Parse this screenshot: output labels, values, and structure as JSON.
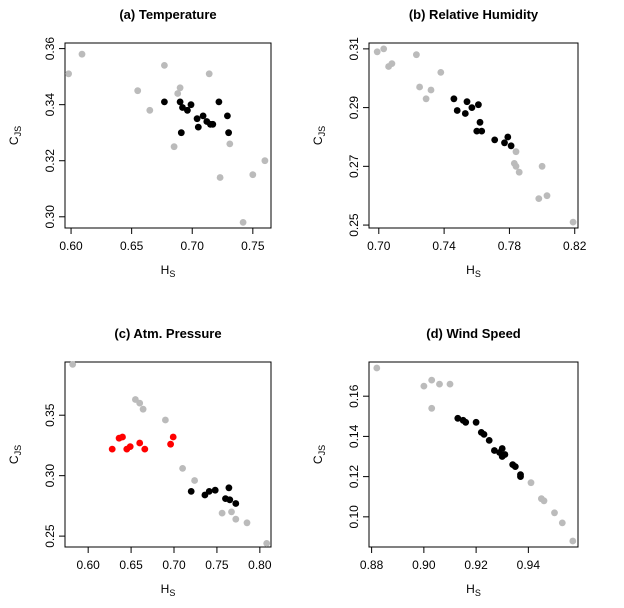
{
  "figure": {
    "type": "scatter-panel-grid"
  },
  "chart_data": [
    {
      "type": "scatter",
      "title": "(a) Temperature",
      "xlabel": "H",
      "xlabel_sub": "S",
      "ylabel": "C",
      "ylabel_sub": "JS",
      "xlim": [
        0.595,
        0.765
      ],
      "ylim": [
        0.296,
        0.362
      ],
      "xticks": [
        0.6,
        0.65,
        0.7,
        0.75
      ],
      "xtick_labels": [
        "0.60",
        "0.65",
        "0.70",
        "0.75"
      ],
      "yticks": [
        0.3,
        0.32,
        0.34,
        0.36
      ],
      "ytick_labels": [
        "0.30",
        "0.32",
        "0.34",
        "0.36"
      ],
      "series": [
        {
          "color": "#bbbbbb",
          "points": [
            [
              0.598,
              0.351
            ],
            [
              0.609,
              0.358
            ],
            [
              0.655,
              0.345
            ],
            [
              0.665,
              0.338
            ],
            [
              0.677,
              0.354
            ],
            [
              0.688,
              0.344
            ],
            [
              0.69,
              0.346
            ],
            [
              0.714,
              0.351
            ],
            [
              0.685,
              0.325
            ],
            [
              0.723,
              0.314
            ],
            [
              0.731,
              0.326
            ],
            [
              0.742,
              0.298
            ],
            [
              0.75,
              0.315
            ],
            [
              0.76,
              0.32
            ]
          ]
        },
        {
          "color": "#000000",
          "points": [
            [
              0.677,
              0.341
            ],
            [
              0.69,
              0.341
            ],
            [
              0.692,
              0.339
            ],
            [
              0.696,
              0.338
            ],
            [
              0.699,
              0.34
            ],
            [
              0.704,
              0.335
            ],
            [
              0.709,
              0.336
            ],
            [
              0.712,
              0.334
            ],
            [
              0.715,
              0.333
            ],
            [
              0.717,
              0.333
            ],
            [
              0.705,
              0.332
            ],
            [
              0.722,
              0.341
            ],
            [
              0.729,
              0.336
            ],
            [
              0.73,
              0.33
            ],
            [
              0.691,
              0.33
            ]
          ]
        }
      ]
    },
    {
      "type": "scatter",
      "title": "(b) Relative Humidity",
      "xlabel": "H",
      "xlabel_sub": "S",
      "ylabel": "C",
      "ylabel_sub": "JS",
      "xlim": [
        0.694,
        0.822
      ],
      "ylim": [
        0.249,
        0.312
      ],
      "xticks": [
        0.7,
        0.74,
        0.78,
        0.82
      ],
      "xtick_labels": [
        "0.70",
        "0.74",
        "0.78",
        "0.82"
      ],
      "yticks": [
        0.25,
        0.27,
        0.29,
        0.31
      ],
      "ytick_labels": [
        "0.25",
        "0.27",
        "0.29",
        "0.31"
      ],
      "series": [
        {
          "color": "#bbbbbb",
          "points": [
            [
              0.699,
              0.309
            ],
            [
              0.703,
              0.31
            ],
            [
              0.706,
              0.304
            ],
            [
              0.708,
              0.305
            ],
            [
              0.723,
              0.308
            ],
            [
              0.725,
              0.297
            ],
            [
              0.729,
              0.293
            ],
            [
              0.732,
              0.296
            ],
            [
              0.738,
              0.302
            ],
            [
              0.784,
              0.275
            ],
            [
              0.783,
              0.271
            ],
            [
              0.784,
              0.27
            ],
            [
              0.786,
              0.268
            ],
            [
              0.798,
              0.259
            ],
            [
              0.8,
              0.27
            ],
            [
              0.803,
              0.26
            ],
            [
              0.819,
              0.251
            ]
          ]
        },
        {
          "color": "#000000",
          "points": [
            [
              0.746,
              0.293
            ],
            [
              0.748,
              0.289
            ],
            [
              0.753,
              0.288
            ],
            [
              0.754,
              0.292
            ],
            [
              0.757,
              0.29
            ],
            [
              0.76,
              0.282
            ],
            [
              0.761,
              0.291
            ],
            [
              0.762,
              0.285
            ],
            [
              0.763,
              0.282
            ],
            [
              0.771,
              0.279
            ],
            [
              0.777,
              0.278
            ],
            [
              0.779,
              0.28
            ],
            [
              0.781,
              0.277
            ]
          ]
        }
      ]
    },
    {
      "type": "scatter",
      "title": "(c) Atm. Pressure",
      "xlabel": "H",
      "xlabel_sub": "S",
      "ylabel": "C",
      "ylabel_sub": "JS",
      "xlim": [
        0.573,
        0.813
      ],
      "ylim": [
        0.241,
        0.394
      ],
      "xticks": [
        0.6,
        0.65,
        0.7,
        0.75,
        0.8
      ],
      "xtick_labels": [
        "0.60",
        "0.65",
        "0.70",
        "0.75",
        "0.80"
      ],
      "yticks": [
        0.25,
        0.3,
        0.35
      ],
      "ytick_labels": [
        "0.25",
        "0.30",
        "0.35"
      ],
      "series": [
        {
          "color": "#bbbbbb",
          "points": [
            [
              0.582,
              0.392
            ],
            [
              0.655,
              0.363
            ],
            [
              0.66,
              0.36
            ],
            [
              0.664,
              0.355
            ],
            [
              0.69,
              0.346
            ],
            [
              0.71,
              0.306
            ],
            [
              0.724,
              0.296
            ],
            [
              0.756,
              0.269
            ],
            [
              0.767,
              0.27
            ],
            [
              0.772,
              0.264
            ],
            [
              0.785,
              0.261
            ],
            [
              0.808,
              0.244
            ]
          ]
        },
        {
          "color": "#ff0000",
          "points": [
            [
              0.628,
              0.322
            ],
            [
              0.636,
              0.331
            ],
            [
              0.64,
              0.332
            ],
            [
              0.645,
              0.322
            ],
            [
              0.649,
              0.324
            ],
            [
              0.66,
              0.327
            ],
            [
              0.666,
              0.322
            ],
            [
              0.696,
              0.326
            ],
            [
              0.699,
              0.332
            ]
          ]
        },
        {
          "color": "#000000",
          "points": [
            [
              0.72,
              0.287
            ],
            [
              0.736,
              0.284
            ],
            [
              0.741,
              0.287
            ],
            [
              0.748,
              0.288
            ],
            [
              0.76,
              0.281
            ],
            [
              0.764,
              0.29
            ],
            [
              0.765,
              0.28
            ],
            [
              0.772,
              0.277
            ]
          ]
        }
      ]
    },
    {
      "type": "scatter",
      "title": "(d) Wind Speed",
      "xlabel": "H",
      "xlabel_sub": "S",
      "ylabel": "C",
      "ylabel_sub": "JS",
      "xlim": [
        0.879,
        0.959
      ],
      "ylim": [
        0.085,
        0.177
      ],
      "xticks": [
        0.88,
        0.9,
        0.92,
        0.94
      ],
      "xtick_labels": [
        "0.88",
        "0.90",
        "0.92",
        "0.94"
      ],
      "yticks": [
        0.1,
        0.12,
        0.14,
        0.16
      ],
      "ytick_labels": [
        "0.10",
        "0.12",
        "0.14",
        "0.16"
      ],
      "series": [
        {
          "color": "#bbbbbb",
          "points": [
            [
              0.882,
              0.174
            ],
            [
              0.9,
              0.165
            ],
            [
              0.903,
              0.168
            ],
            [
              0.906,
              0.166
            ],
            [
              0.91,
              0.166
            ],
            [
              0.903,
              0.154
            ],
            [
              0.941,
              0.117
            ],
            [
              0.945,
              0.109
            ],
            [
              0.946,
              0.108
            ],
            [
              0.95,
              0.102
            ],
            [
              0.953,
              0.097
            ],
            [
              0.957,
              0.088
            ]
          ]
        },
        {
          "color": "#000000",
          "points": [
            [
              0.913,
              0.149
            ],
            [
              0.915,
              0.148
            ],
            [
              0.916,
              0.147
            ],
            [
              0.92,
              0.147
            ],
            [
              0.922,
              0.142
            ],
            [
              0.923,
              0.141
            ],
            [
              0.925,
              0.138
            ],
            [
              0.927,
              0.133
            ],
            [
              0.929,
              0.132
            ],
            [
              0.93,
              0.13
            ],
            [
              0.93,
              0.134
            ],
            [
              0.931,
              0.131
            ],
            [
              0.934,
              0.126
            ],
            [
              0.935,
              0.125
            ],
            [
              0.937,
              0.121
            ],
            [
              0.937,
              0.12
            ]
          ]
        }
      ]
    }
  ]
}
